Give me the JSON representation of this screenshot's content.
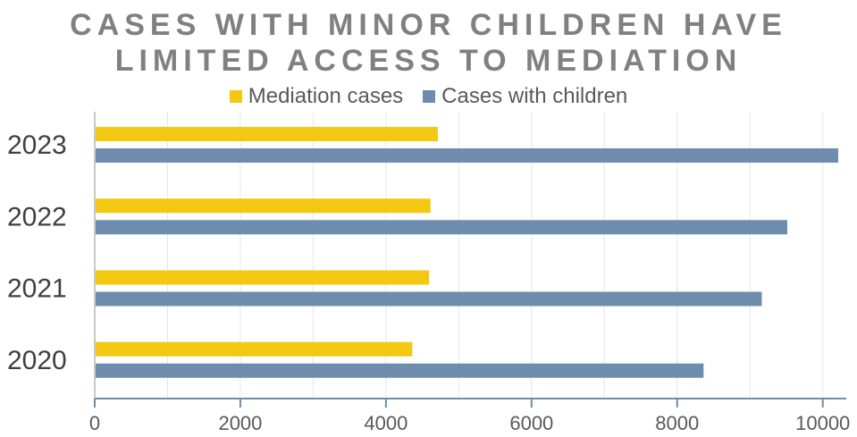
{
  "chart_data": {
    "type": "bar",
    "orientation": "horizontal",
    "title": "CASES WITH MINOR CHILDREN HAVE LIMITED ACCESS TO MEDIATION",
    "title_lines": [
      "CASES WITH MINOR CHILDREN HAVE",
      "LIMITED ACCESS TO MEDIATION"
    ],
    "categories": [
      "2023",
      "2022",
      "2021",
      "2020"
    ],
    "series": [
      {
        "name": "Mediation cases",
        "color": "#F2C811",
        "values": [
          4700,
          4600,
          4580,
          4350
        ]
      },
      {
        "name": "Cases with children",
        "color": "#6E8CAD",
        "values": [
          10200,
          9500,
          9150,
          8350
        ]
      }
    ],
    "xlim": [
      0,
      10200
    ],
    "xticks": [
      0,
      2000,
      4000,
      6000,
      8000,
      10000
    ],
    "xlabel": "",
    "ylabel": "",
    "grid": "vertical",
    "legend_position": "top"
  }
}
